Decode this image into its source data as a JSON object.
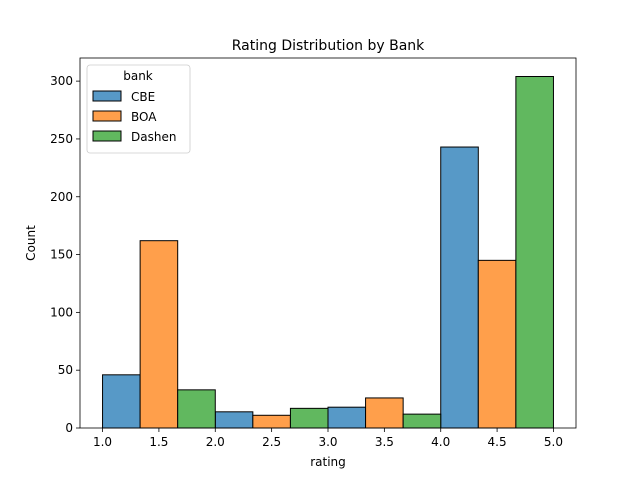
{
  "chart_data": {
    "type": "bar",
    "title": "Rating Distribution by Bank",
    "xlabel": "rating",
    "ylabel": "Count",
    "xlim": [
      0.8,
      5.2
    ],
    "ylim": [
      0,
      320
    ],
    "xticks": [
      "1.0",
      "1.5",
      "2.0",
      "2.5",
      "3.0",
      "3.5",
      "4.0",
      "4.5",
      "5.0"
    ],
    "yticks": [
      "0",
      "50",
      "100",
      "150",
      "200",
      "250",
      "300"
    ],
    "grid": false,
    "legend": {
      "title": "bank",
      "placement": "top-left"
    },
    "categories": [
      "1",
      "2",
      "3",
      "4",
      "5"
    ],
    "series": [
      {
        "name": "CBE",
        "color": "#5799c7",
        "values": [
          46,
          14,
          18,
          243,
          0
        ]
      },
      {
        "name": "BOA",
        "color": "#ff9f4b",
        "values": [
          162,
          11,
          26,
          145,
          0
        ]
      },
      {
        "name": "Dashen",
        "color": "#61b85f",
        "values": [
          33,
          17,
          12,
          304,
          0
        ]
      }
    ]
  }
}
